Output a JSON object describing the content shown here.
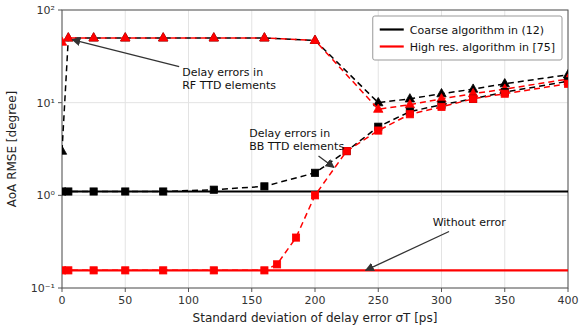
{
  "chart_data": {
    "type": "line",
    "title": "",
    "xlabel": "Standard deviation of delay error σT [ps]",
    "ylabel": "AoA RMSE [degree]",
    "log": "y",
    "grid": true,
    "legend": "upper right",
    "xlim": [
      0,
      400
    ],
    "ylim": [
      0.1,
      100
    ],
    "xticks": [
      0,
      50,
      100,
      150,
      200,
      250,
      300,
      350,
      400
    ],
    "yticks": [
      {
        "value": 0.1,
        "label": "10⁻¹"
      },
      {
        "value": 1,
        "label": "10⁰"
      },
      {
        "value": 10,
        "label": "10¹"
      },
      {
        "value": 100,
        "label": "10²"
      }
    ],
    "series": [
      {
        "name": "Coarse algorithm in (12)",
        "color": "black",
        "line_style": "solid",
        "x": [
          0,
          400
        ],
        "values": [
          1.1,
          1.1
        ]
      },
      {
        "name": "High res. algorithm in [75]",
        "color": "red",
        "line_style": "solid",
        "x": [
          0,
          400
        ],
        "values": [
          0.155,
          0.155
        ]
      },
      {
        "color": "black",
        "line_style": "dashed",
        "marker": "triangle",
        "x": [
          0,
          5,
          25,
          50,
          80,
          120,
          160,
          200,
          250,
          275,
          300,
          325,
          350,
          400
        ],
        "values": [
          3.0,
          50,
          50,
          50,
          50,
          50,
          50,
          47,
          10,
          11,
          12.5,
          14,
          16,
          20
        ]
      },
      {
        "color": "red",
        "line_style": "dashed",
        "marker": "triangle",
        "x": [
          0,
          5,
          25,
          50,
          80,
          120,
          160,
          200,
          250,
          275,
          300,
          325,
          350,
          400
        ],
        "values": [
          45,
          50,
          50,
          50,
          50,
          50,
          50,
          47,
          8.5,
          9.5,
          11,
          12.5,
          14,
          18
        ]
      },
      {
        "color": "black",
        "line_style": "dashed",
        "marker": "square",
        "x": [
          0,
          5,
          25,
          50,
          80,
          120,
          160,
          200,
          225,
          250,
          275,
          300,
          325,
          350,
          400
        ],
        "values": [
          1.1,
          1.1,
          1.1,
          1.1,
          1.1,
          1.15,
          1.25,
          1.75,
          3.0,
          5.5,
          8.0,
          9.5,
          11,
          13,
          17
        ]
      },
      {
        "color": "red",
        "line_style": "dashed",
        "marker": "square",
        "x": [
          0,
          5,
          25,
          50,
          80,
          120,
          160,
          170,
          185,
          200,
          225,
          250,
          275,
          300,
          325,
          350,
          400
        ],
        "values": [
          0.155,
          0.155,
          0.155,
          0.155,
          0.155,
          0.155,
          0.155,
          0.18,
          0.35,
          1.0,
          3.0,
          5.0,
          7.5,
          9.0,
          11,
          12.5,
          16
        ]
      }
    ],
    "annotations": [
      {
        "text": "Delay errors in\nRF TTD elements",
        "x": 8,
        "y": 48,
        "text_x": 95,
        "text_y": 18
      },
      {
        "text": "Delay errors in\nBB TTD elements",
        "x": 215,
        "y": 2.0,
        "text_x": 148,
        "text_y": 4.0
      },
      {
        "text": "Without error",
        "x": 240,
        "y": 0.155,
        "text_x": 293,
        "text_y": 0.52
      }
    ]
  }
}
